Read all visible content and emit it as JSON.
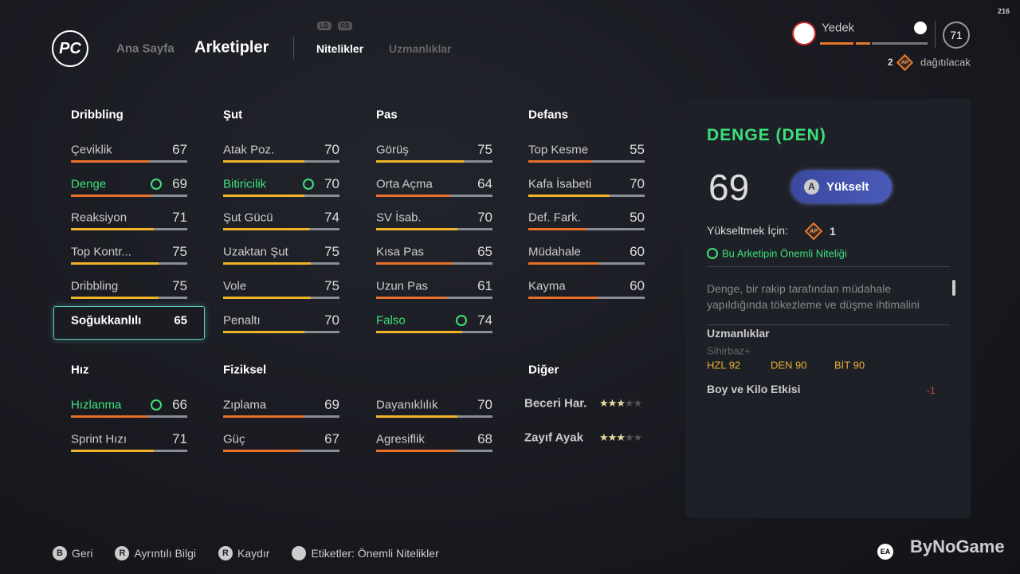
{
  "hud": {
    "fps": "216"
  },
  "nav": {
    "logo": "PC",
    "items": [
      "Ana Sayfa",
      "Arketipler"
    ],
    "bumpers": [
      "LB",
      "RB"
    ],
    "tabs": [
      "Nitelikler",
      "Uzmanlıklar"
    ]
  },
  "player": {
    "role": "Yedek",
    "rating": 71,
    "ap_count": 2,
    "ap": "AP",
    "ap_text": "dağıtılacak"
  },
  "groups": [
    {
      "title": "Dribbling",
      "stats": [
        {
          "name": "Çeviklik",
          "value": 67
        },
        {
          "name": "Denge",
          "value": 69,
          "key": true
        },
        {
          "name": "Reaksiyon",
          "value": 71
        },
        {
          "name": "Top Kontr...",
          "value": 75
        },
        {
          "name": "Dribbling",
          "value": 75
        },
        {
          "name": "Soğukkanlılı",
          "value": 65,
          "selected": true
        }
      ]
    },
    {
      "title": "Şut",
      "stats": [
        {
          "name": "Atak Poz.",
          "value": 70
        },
        {
          "name": "Bitiricilik",
          "value": 70,
          "key": true
        },
        {
          "name": "Şut Gücü",
          "value": 74
        },
        {
          "name": "Uzaktan Şut",
          "value": 75
        },
        {
          "name": "Vole",
          "value": 75
        },
        {
          "name": "Penaltı",
          "value": 70
        }
      ]
    },
    {
      "title": "Pas",
      "stats": [
        {
          "name": "Görüş",
          "value": 75
        },
        {
          "name": "Orta Açma",
          "value": 64
        },
        {
          "name": "SV İsab.",
          "value": 70
        },
        {
          "name": "Kısa Pas",
          "value": 65
        },
        {
          "name": "Uzun Pas",
          "value": 61
        },
        {
          "name": "Falso",
          "value": 74,
          "key": true
        }
      ]
    },
    {
      "title": "Defans",
      "stats": [
        {
          "name": "Top Kesme",
          "value": 55
        },
        {
          "name": "Kafa İsabeti",
          "value": 70
        },
        {
          "name": "Def. Fark.",
          "value": 50
        },
        {
          "name": "Müdahale",
          "value": 60
        },
        {
          "name": "Kayma",
          "value": 60
        }
      ]
    },
    {
      "title": "Hız",
      "stats": [
        {
          "name": "Hızlanma",
          "value": 66,
          "key": true
        },
        {
          "name": "Sprint Hızı",
          "value": 71
        }
      ]
    },
    {
      "title": "Fiziksel",
      "stats": [
        {
          "name": "Zıplama",
          "value": 69
        },
        {
          "name": "Güç",
          "value": 67
        },
        {
          "name": "Dayanıklılık",
          "value": 70
        },
        {
          "name": "Agresiflik",
          "value": 68
        }
      ]
    }
  ],
  "other": {
    "title": "Diğer",
    "items": [
      {
        "name": "Beceri Har.",
        "stars": 3
      },
      {
        "name": "Zayıf Ayak",
        "stars": 3
      }
    ]
  },
  "detail": {
    "title": "DENGE (DEN)",
    "value": 69,
    "button_key": "A",
    "button": "Yükselt",
    "cost_label": "Yükseltmek İçin:",
    "cost_icon": "AP",
    "cost": 1,
    "key_note": "Bu Arketipin Önemli Niteliği",
    "description": "Denge, bir rakip tarafından müdahale yapıldığında tökezleme ve düşme ihtimalini",
    "specs_title": "Uzmanlıklar",
    "spec_name": "Sihirbaz+",
    "spec_stats": [
      "HZL 92",
      "DEN 90",
      "BİT 90"
    ],
    "body_title": "Boy ve Kilo Etkisi",
    "body_value": -1
  },
  "footer": [
    {
      "key": "B",
      "label": "Geri"
    },
    {
      "key": "R",
      "label": "Ayrıntılı Bilgi"
    },
    {
      "key": "R",
      "label": "Kaydır"
    },
    {
      "label": "Etiketler: Önemli Nitelikler"
    }
  ],
  "watermark": {
    "ea": "EA",
    "brand": "ByNoGame"
  }
}
